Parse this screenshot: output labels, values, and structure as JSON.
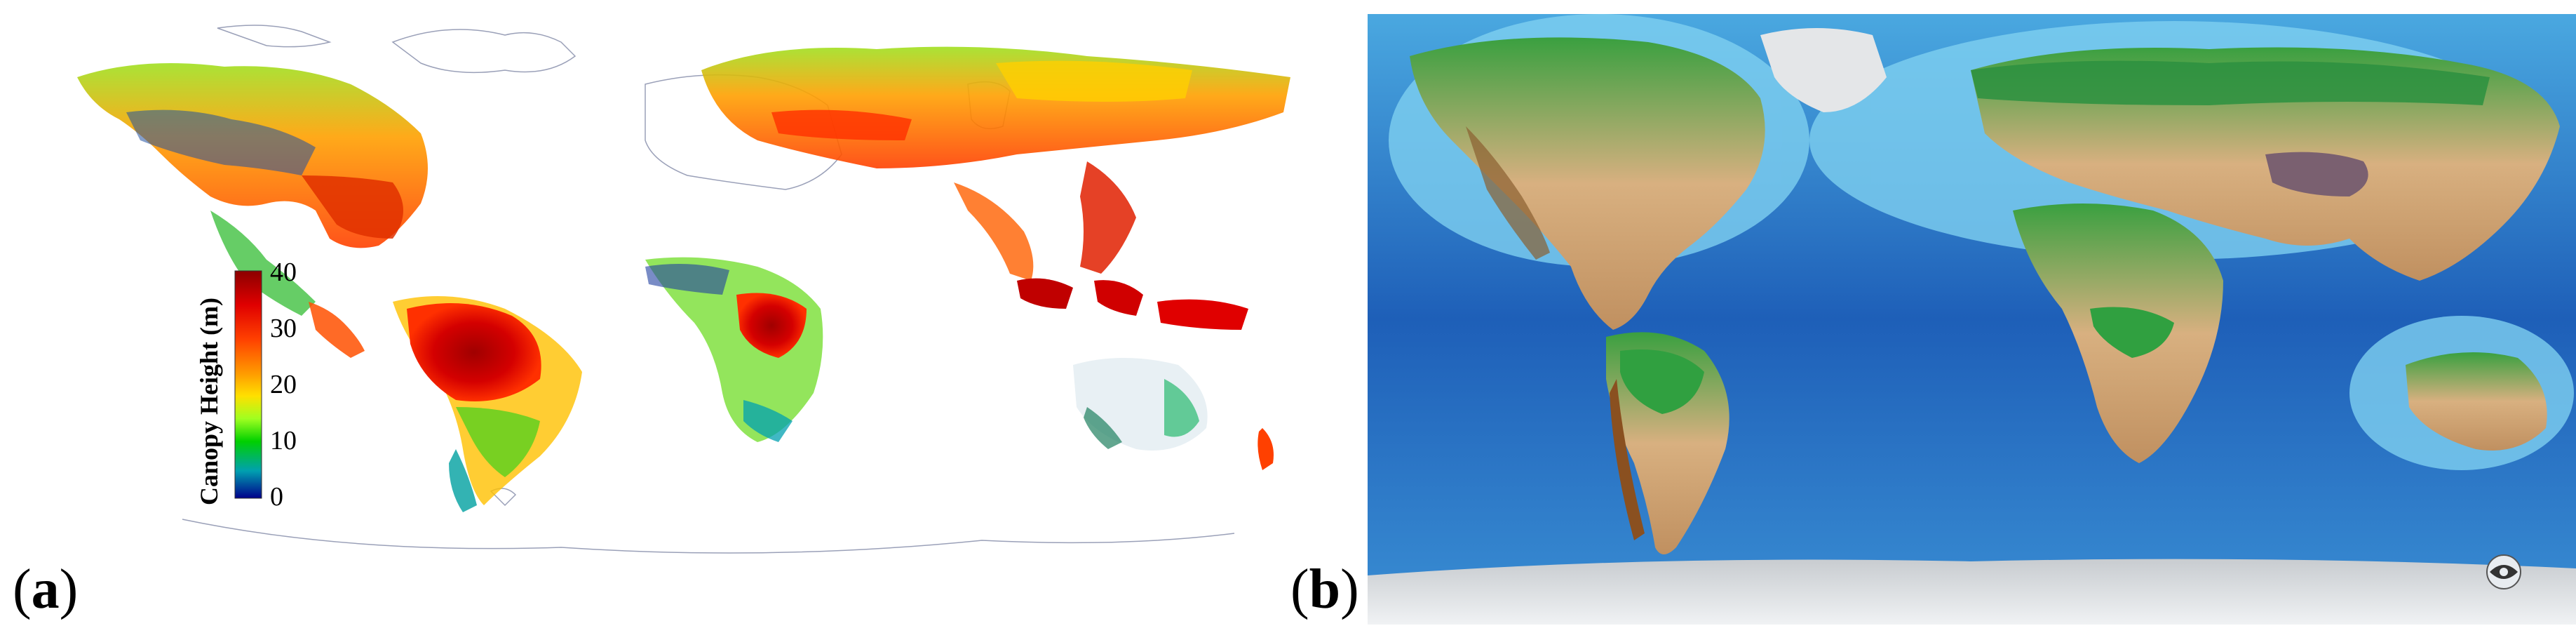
{
  "figure": {
    "panel_a": {
      "label": "a",
      "legend": {
        "title": "Canopy Height (m)",
        "ticks": [
          "40",
          "30",
          "20",
          "10",
          "0"
        ],
        "colors": [
          "#a50000",
          "#e60000",
          "#ff4500",
          "#ff8c00",
          "#ffd700",
          "#adff2f",
          "#00c000",
          "#00a0a0",
          "#0000a0"
        ]
      }
    },
    "panel_b": {
      "label": "b",
      "logo": "noaa-logo"
    }
  }
}
